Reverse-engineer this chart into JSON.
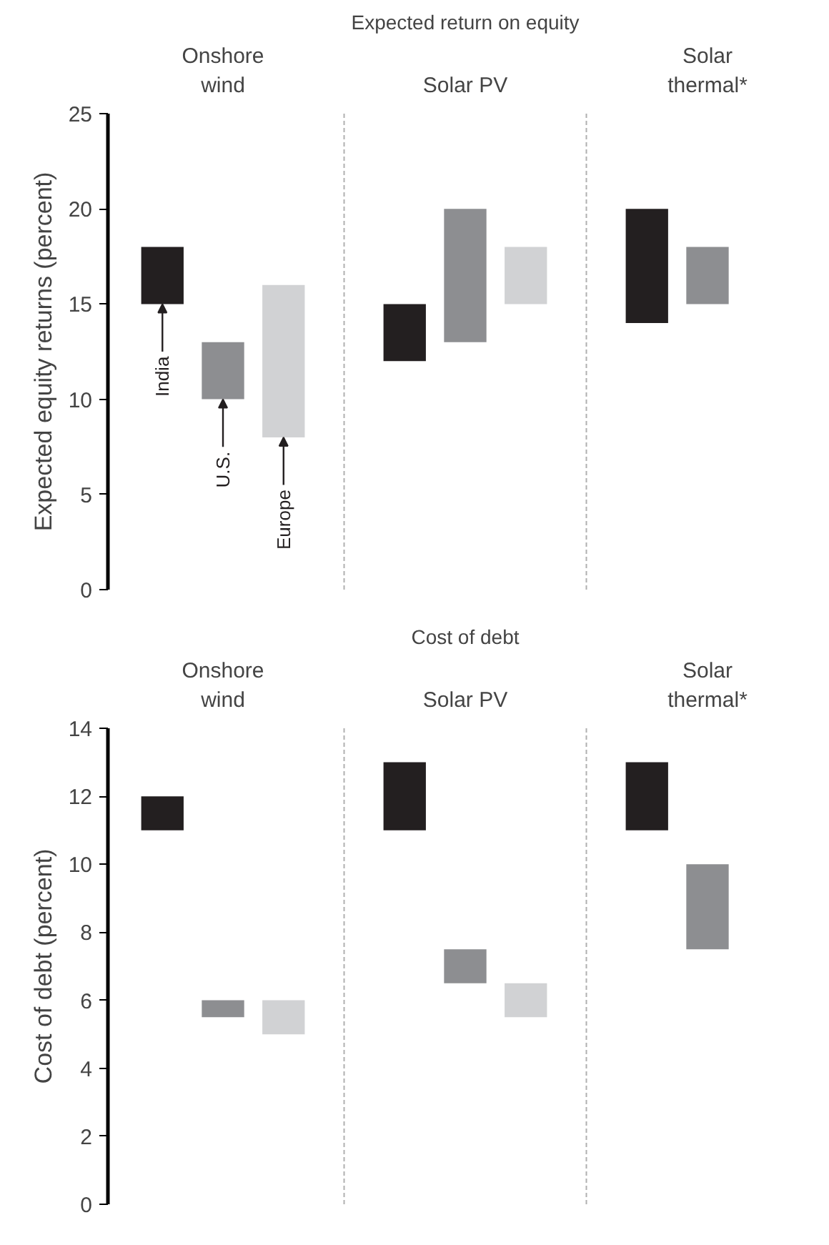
{
  "chart_data": [
    {
      "type": "bar",
      "title": "Expected return on equity",
      "ylabel": "Expected equity returns (percent)",
      "categories": [
        "Onshore wind",
        "Solar PV",
        "Solar thermal*"
      ],
      "ylim": [
        0,
        25
      ],
      "yticks": [
        0,
        5,
        10,
        15,
        20,
        25
      ],
      "grid": "x",
      "legend": false,
      "tick_labels": "y",
      "series": [
        {
          "name": "India",
          "color": "#231f20",
          "base": [
            15,
            12,
            14
          ],
          "values": [
            3,
            3,
            6
          ]
        },
        {
          "name": "U.S.",
          "color": "#8d8e91",
          "base": [
            10,
            13,
            15
          ],
          "values": [
            3,
            7,
            3
          ]
        },
        {
          "name": "Europe",
          "color": "#d1d2d4",
          "base": [
            8,
            15,
            null
          ],
          "values": [
            8,
            3,
            null
          ]
        }
      ]
    },
    {
      "type": "bar",
      "title": "Cost of debt",
      "ylabel": "Cost of debt (percent)",
      "categories": [
        "Onshore wind",
        "Solar PV",
        "Solar thermal*"
      ],
      "ylim": [
        0,
        14
      ],
      "yticks": [
        0,
        2,
        4,
        6,
        8,
        10,
        12,
        14
      ],
      "grid": "x",
      "legend": false,
      "tick_labels": "y",
      "series": [
        {
          "color": "#231f20",
          "base": [
            11,
            11,
            11
          ],
          "values": [
            1,
            2,
            2
          ]
        },
        {
          "color": "#8d8e91",
          "base": [
            5.5,
            6.5,
            7.5
          ],
          "values": [
            0.5,
            1,
            2.5
          ]
        },
        {
          "color": "#d1d2d4",
          "base": [
            5,
            5.5,
            null
          ],
          "values": [
            1,
            1,
            null
          ]
        }
      ]
    }
  ]
}
